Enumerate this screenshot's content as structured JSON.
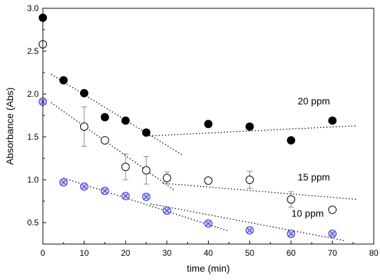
{
  "chart_data": {
    "type": "scatter",
    "xlabel": "time (min)",
    "ylabel": "Absorbance (Abs)",
    "xlim": [
      0,
      80
    ],
    "ylim": [
      0.25,
      3.0
    ],
    "xticks": [
      "0",
      "10",
      "20",
      "30",
      "40",
      "50",
      "60",
      "70",
      "80"
    ],
    "yticks": [
      "0.5",
      "1.0",
      "1.5",
      "2.0",
      "2.5",
      "3.0"
    ],
    "grid": false,
    "series": [
      {
        "name": "20 ppm",
        "marker": "filled-circle",
        "color": "#000000",
        "points": [
          {
            "x": 0,
            "y": 2.89
          },
          {
            "x": 5,
            "y": 2.16
          },
          {
            "x": 10,
            "y": 2.01
          },
          {
            "x": 15,
            "y": 1.73
          },
          {
            "x": 20,
            "y": 1.69
          },
          {
            "x": 25,
            "y": 1.55
          },
          {
            "x": 40,
            "y": 1.65
          },
          {
            "x": 50,
            "y": 1.62
          },
          {
            "x": 60,
            "y": 1.46
          },
          {
            "x": 70,
            "y": 1.69
          }
        ],
        "trendlines": [
          {
            "x1": 2,
            "y1": 2.23,
            "x2": 34,
            "y2": 1.28
          },
          {
            "x1": 25,
            "y1": 1.51,
            "x2": 76,
            "y2": 1.63
          }
        ]
      },
      {
        "name": "15 ppm",
        "marker": "open-circle",
        "color": "#000000",
        "points": [
          {
            "x": 0,
            "y": 2.58
          },
          {
            "x": 10,
            "y": 1.62,
            "err": 0.23
          },
          {
            "x": 15,
            "y": 1.46
          },
          {
            "x": 20,
            "y": 1.15,
            "err": 0.15
          },
          {
            "x": 25,
            "y": 1.11,
            "err": 0.16
          },
          {
            "x": 30,
            "y": 1.02,
            "err": 0.07
          },
          {
            "x": 40,
            "y": 0.99
          },
          {
            "x": 50,
            "y": 1.0,
            "err": 0.1
          },
          {
            "x": 60,
            "y": 0.77,
            "err": 0.09
          },
          {
            "x": 70,
            "y": 0.65
          }
        ],
        "trendlines": [
          {
            "x1": 2,
            "y1": 1.9,
            "x2": 32,
            "y2": 0.87
          },
          {
            "x1": 29,
            "y1": 0.96,
            "x2": 76,
            "y2": 0.77
          }
        ]
      },
      {
        "name": "10 ppm",
        "marker": "crossed-circle",
        "color": "#3a3ad8",
        "points": [
          {
            "x": 0,
            "y": 1.91
          },
          {
            "x": 5,
            "y": 0.97
          },
          {
            "x": 10,
            "y": 0.92
          },
          {
            "x": 15,
            "y": 0.87
          },
          {
            "x": 20,
            "y": 0.81
          },
          {
            "x": 25,
            "y": 0.8
          },
          {
            "x": 30,
            "y": 0.64
          },
          {
            "x": 40,
            "y": 0.49
          },
          {
            "x": 50,
            "y": 0.41
          },
          {
            "x": 60,
            "y": 0.37
          },
          {
            "x": 70,
            "y": 0.37
          }
        ],
        "trendlines": [
          {
            "x1": 5,
            "y1": 1.02,
            "x2": 45,
            "y2": 0.4
          },
          {
            "x1": 26,
            "y1": 0.72,
            "x2": 73,
            "y2": 0.29
          }
        ]
      }
    ],
    "annotations": [
      {
        "text": "20 ppm",
        "x": 65.5,
        "y": 1.88
      },
      {
        "text": "15 ppm",
        "x": 65.5,
        "y": 0.99
      },
      {
        "text": "10 ppm",
        "x": 64,
        "y": 0.57
      }
    ]
  }
}
